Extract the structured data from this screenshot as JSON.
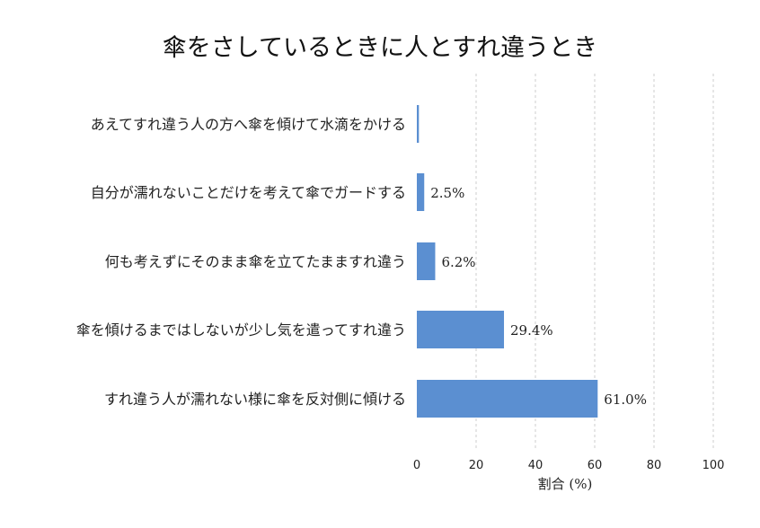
{
  "chart_data": {
    "type": "bar",
    "orientation": "horizontal",
    "title": "傘をさしているときに人とすれ違うとき",
    "xlabel": "割合 (%)",
    "ylabel": "",
    "xlim": [
      0,
      100
    ],
    "x_ticks": [
      "0",
      "20",
      "40",
      "60",
      "80",
      "100"
    ],
    "grid": true,
    "bar_color": "#5b8fd1",
    "categories": [
      "あえてすれ違う人の方へ傘を傾けて水滴をかける",
      "自分が濡れないことだけを考えて傘でガードする",
      "何も考えずにそのまま傘を立てたまますれ違う",
      "傘を傾けるまではしないが少し気を遣ってすれ違う",
      "すれ違う人が濡れない様に傘を反対側に傾ける"
    ],
    "values": [
      0.7,
      2.5,
      6.2,
      29.4,
      61.0
    ],
    "value_labels": [
      "",
      "2.5%",
      "6.2%",
      "29.4%",
      "61.0%"
    ]
  }
}
